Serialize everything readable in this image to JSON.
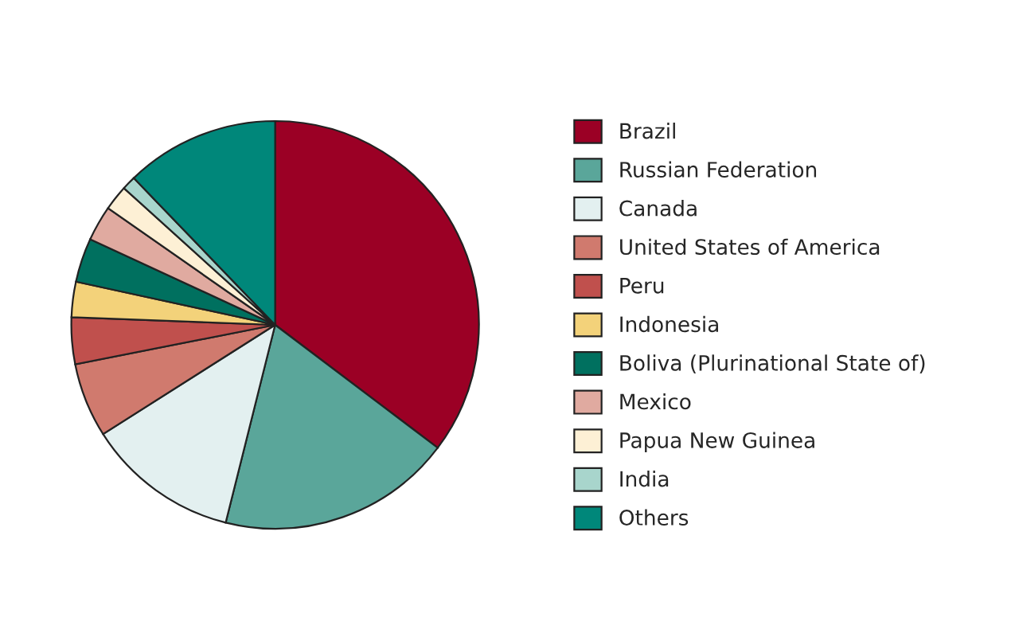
{
  "chart_data": {
    "type": "pie",
    "categories": [
      "Brazil",
      "Russian Federation",
      "Canada",
      "United States of America",
      "Peru",
      "Indonesia",
      "Boliva (Plurinational State of)",
      "Mexico",
      "Papua New Guinea",
      "India",
      "Others"
    ],
    "values": [
      35.3,
      18.6,
      12.1,
      5.9,
      3.7,
      2.8,
      3.5,
      2.8,
      2.0,
      1.1,
      12.2
    ],
    "colors": [
      "#9b0025",
      "#5aa69a",
      "#e3f0f0",
      "#d07a6e",
      "#c0504d",
      "#f3d27a",
      "#00705f",
      "#e0aaa0",
      "#fdf0d5",
      "#a8d5cc",
      "#00877a"
    ],
    "legend": "right"
  }
}
